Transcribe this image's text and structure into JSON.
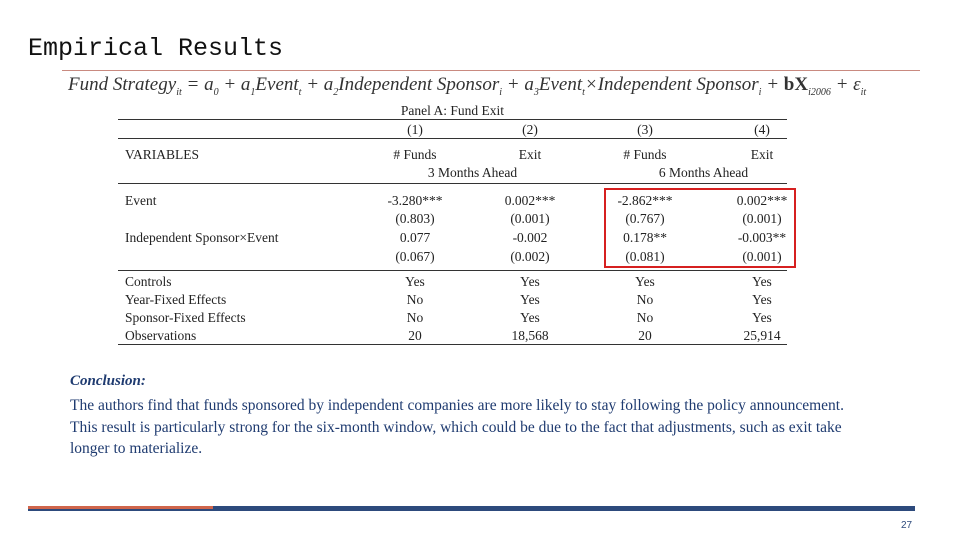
{
  "title": "Empirical Results",
  "equation": [
    {
      "text": "Fund Strategy",
      "sub": "it"
    },
    {
      "text": " = a",
      "sub": "0"
    },
    {
      "text": " + a",
      "sub": "1"
    },
    {
      "text": "Event",
      "sub": "t"
    },
    {
      "text": " + a",
      "sub": "2"
    },
    {
      "text": "Independent Sponsor",
      "sub": "i"
    },
    {
      "text": " + a",
      "sub": "3"
    },
    {
      "text": "Event",
      "sub": "t"
    },
    {
      "text": "×Independent Sponsor",
      "sub": "i"
    },
    {
      "text": " + "
    },
    {
      "text": "bX",
      "sub": "i2006",
      "bold": true
    },
    {
      "text": " + ε",
      "sub": "it"
    }
  ],
  "table": {
    "panel_title": "Panel A: Fund Exit",
    "column_numbers": [
      "(1)",
      "(2)",
      "(3)",
      "(4)"
    ],
    "variables_label": "VARIABLES",
    "column_headers": [
      "# Funds",
      "Exit",
      "# Funds",
      "Exit"
    ],
    "horizons": [
      "3 Months Ahead",
      "6 Months Ahead"
    ],
    "rows": [
      [
        [
          "Event"
        ],
        [
          "-3.280***",
          "0.002***",
          "-2.862***",
          "0.002***"
        ]
      ],
      [
        null,
        [
          "(0.803)",
          "(0.001)",
          "(0.767)",
          "(0.001)"
        ]
      ],
      [
        [
          "Independent Sponsor×Event"
        ],
        [
          "0.077",
          "-0.002",
          "0.178**",
          "-0.003**"
        ]
      ],
      [
        null,
        [
          "(0.067)",
          "(0.002)",
          "(0.081)",
          "(0.001)"
        ]
      ]
    ],
    "control_rows": [
      [
        [
          "Controls"
        ],
        [
          "Yes",
          "Yes",
          "Yes",
          "Yes"
        ]
      ],
      [
        [
          "Year-Fixed Effects"
        ],
        [
          "No",
          "Yes",
          "No",
          "Yes"
        ]
      ],
      [
        [
          "Sponsor-Fixed Effects"
        ],
        [
          "No",
          "Yes",
          "No",
          "Yes"
        ]
      ],
      [
        [
          "Observations"
        ],
        [
          "20",
          "18,568",
          "20",
          "25,914"
        ]
      ]
    ]
  },
  "conclusion": {
    "label": "Conclusion:",
    "text": "The authors find that funds sponsored by independent companies are more likely to stay following the policy announcement. This result is particularly strong for the six-month window, which could be due to the fact that adjustments, such as exit take longer to materialize."
  },
  "page_number": "27"
}
